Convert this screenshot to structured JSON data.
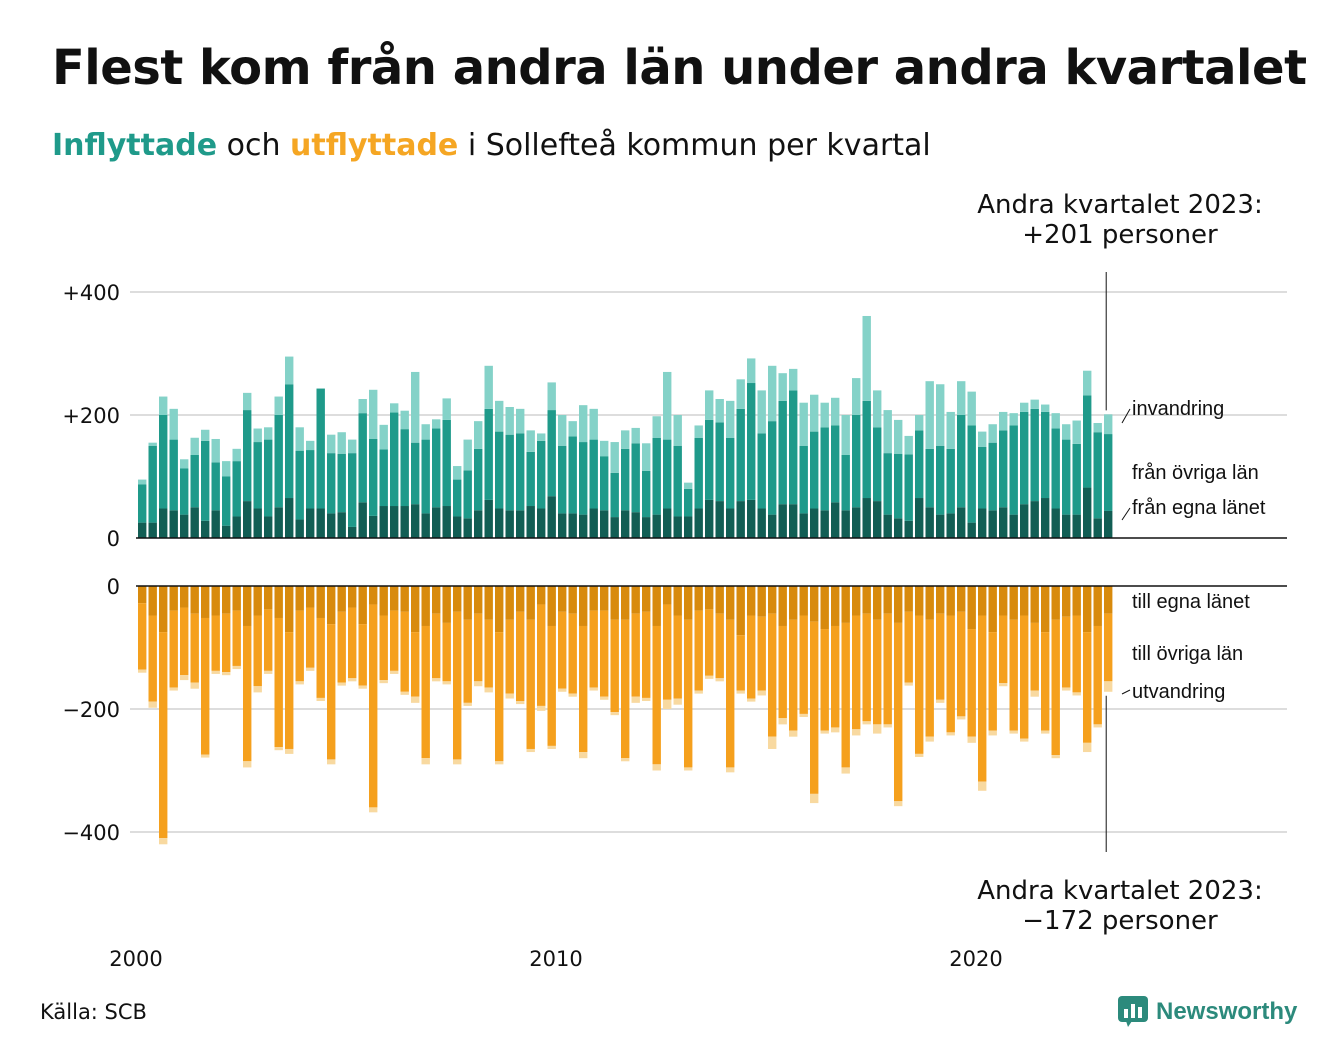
{
  "title": "Flest kom från andra län under andra kvartalet",
  "subtitle": {
    "part1": "Inflyttade",
    "part2": "och",
    "part3": "utflyttade",
    "part4": "i Sollefteå kommun per kvartal"
  },
  "annotation_top": {
    "line1": "Andra kvartalet 2023:",
    "line2": "+201 personer"
  },
  "annotation_bottom": {
    "line1": "Andra kvartalet 2023:",
    "line2": "−172 personer"
  },
  "source": "Källa: SCB",
  "logo": {
    "text": "Newsworthy",
    "icon": "bar-chart-logo-icon"
  },
  "colors": {
    "in_own": "#125e54",
    "in_other": "#1f9a8a",
    "in_imm": "#84d2c8",
    "out_own": "#d88a0d",
    "out_other": "#f5a01d",
    "out_emi": "#f8d9a0",
    "grid": "#dddddd"
  },
  "chart_data": {
    "type": "bar",
    "x_tick_labels": [
      "2000",
      "2010",
      "2020"
    ],
    "y_ticks_top": [
      "+400",
      "+200",
      "0"
    ],
    "y_ticks_bottom": [
      "0",
      "−200",
      "−400"
    ],
    "ylim_top": [
      0,
      400
    ],
    "ylim_bottom": [
      -400,
      0
    ],
    "grid": true,
    "start_quarter": "2000 Q1",
    "end_quarter": "2023 Q2",
    "series_labels_in": [
      "invandring",
      "från övriga län",
      "från egna länet"
    ],
    "series_labels_out": [
      "till egna länet",
      "till övriga län",
      "utvandring"
    ],
    "in_own": [
      25,
      25,
      48,
      45,
      38,
      50,
      28,
      45,
      20,
      35,
      60,
      48,
      35,
      50,
      65,
      30,
      48,
      48,
      40,
      42,
      18,
      58,
      36,
      52,
      52,
      52,
      55,
      40,
      50,
      52,
      35,
      32,
      45,
      62,
      48,
      45,
      45,
      52,
      48,
      68,
      40,
      40,
      38,
      48,
      45,
      34,
      45,
      42,
      34,
      38,
      48,
      35,
      35,
      48,
      62,
      60,
      48,
      60,
      62,
      48,
      38,
      55,
      55,
      40,
      48,
      45,
      58,
      45,
      50,
      65,
      60,
      38,
      32,
      28,
      65,
      50,
      38,
      40,
      50,
      25,
      48,
      45,
      50,
      38,
      55,
      60,
      65,
      48,
      38,
      38,
      82,
      32,
      44
    ],
    "in_other": [
      62,
      125,
      152,
      115,
      75,
      85,
      130,
      78,
      80,
      90,
      148,
      108,
      125,
      150,
      185,
      112,
      95,
      195,
      98,
      95,
      120,
      145,
      125,
      92,
      152,
      125,
      100,
      120,
      128,
      140,
      60,
      78,
      100,
      148,
      125,
      123,
      125,
      88,
      110,
      140,
      110,
      125,
      118,
      112,
      88,
      72,
      100,
      112,
      75,
      125,
      112,
      115,
      45,
      115,
      130,
      128,
      115,
      150,
      190,
      122,
      152,
      168,
      185,
      110,
      125,
      135,
      125,
      90,
      150,
      158,
      120,
      100,
      105,
      108,
      110,
      95,
      112,
      105,
      150,
      158,
      100,
      110,
      125,
      145,
      150,
      150,
      140,
      130,
      122,
      115,
      150,
      140,
      125
    ],
    "in_imm": [
      8,
      5,
      30,
      50,
      15,
      28,
      18,
      38,
      25,
      20,
      28,
      22,
      20,
      30,
      45,
      38,
      15,
      0,
      30,
      35,
      22,
      23,
      80,
      40,
      15,
      30,
      115,
      25,
      15,
      35,
      22,
      50,
      45,
      70,
      50,
      45,
      40,
      35,
      12,
      45,
      50,
      25,
      60,
      50,
      25,
      50,
      30,
      25,
      45,
      35,
      110,
      50,
      10,
      20,
      48,
      38,
      60,
      48,
      40,
      70,
      90,
      45,
      35,
      70,
      60,
      40,
      45,
      65,
      60,
      138,
      60,
      70,
      55,
      30,
      25,
      110,
      100,
      60,
      55,
      55,
      25,
      30,
      30,
      20,
      15,
      15,
      12,
      25,
      25,
      38,
      40,
      15,
      32
    ],
    "out_own": [
      28,
      48,
      75,
      40,
      35,
      45,
      52,
      48,
      45,
      40,
      65,
      48,
      38,
      52,
      75,
      40,
      35,
      52,
      62,
      42,
      35,
      62,
      30,
      48,
      40,
      42,
      75,
      65,
      45,
      60,
      42,
      55,
      45,
      55,
      75,
      55,
      42,
      55,
      30,
      65,
      42,
      45,
      65,
      40,
      40,
      55,
      55,
      45,
      42,
      65,
      30,
      48,
      55,
      40,
      38,
      45,
      55,
      80,
      48,
      50,
      45,
      65,
      55,
      48,
      58,
      70,
      65,
      60,
      48,
      45,
      55,
      45,
      60,
      42,
      48,
      55,
      45,
      48,
      42,
      70,
      48,
      75,
      48,
      55,
      48,
      60,
      75,
      55,
      50,
      48,
      75,
      65,
      45
    ],
    "out_other": [
      108,
      140,
      335,
      125,
      110,
      112,
      222,
      90,
      95,
      90,
      220,
      115,
      100,
      210,
      190,
      115,
      98,
      130,
      220,
      115,
      115,
      100,
      330,
      105,
      98,
      130,
      105,
      215,
      105,
      95,
      240,
      135,
      110,
      110,
      210,
      120,
      145,
      210,
      165,
      195,
      125,
      130,
      205,
      125,
      140,
      150,
      225,
      135,
      140,
      225,
      155,
      135,
      240,
      130,
      108,
      105,
      240,
      90,
      135,
      120,
      200,
      150,
      180,
      160,
      280,
      165,
      165,
      235,
      185,
      175,
      170,
      180,
      290,
      115,
      225,
      190,
      140,
      190,
      170,
      175,
      270,
      160,
      110,
      180,
      200,
      110,
      160,
      220,
      115,
      125,
      180,
      160,
      110
    ],
    "out_emi": [
      5,
      10,
      10,
      5,
      8,
      10,
      5,
      5,
      5,
      5,
      10,
      10,
      5,
      5,
      8,
      5,
      5,
      5,
      8,
      5,
      5,
      5,
      8,
      5,
      5,
      5,
      10,
      10,
      5,
      5,
      8,
      5,
      8,
      8,
      5,
      8,
      5,
      5,
      8,
      5,
      5,
      5,
      10,
      5,
      5,
      5,
      5,
      10,
      5,
      10,
      15,
      10,
      5,
      5,
      5,
      5,
      8,
      5,
      5,
      8,
      20,
      10,
      10,
      5,
      15,
      5,
      8,
      10,
      10,
      5,
      15,
      5,
      8,
      5,
      5,
      8,
      5,
      5,
      5,
      10,
      15,
      8,
      5,
      5,
      5,
      10,
      5,
      5,
      5,
      5,
      15,
      5,
      17
    ]
  }
}
